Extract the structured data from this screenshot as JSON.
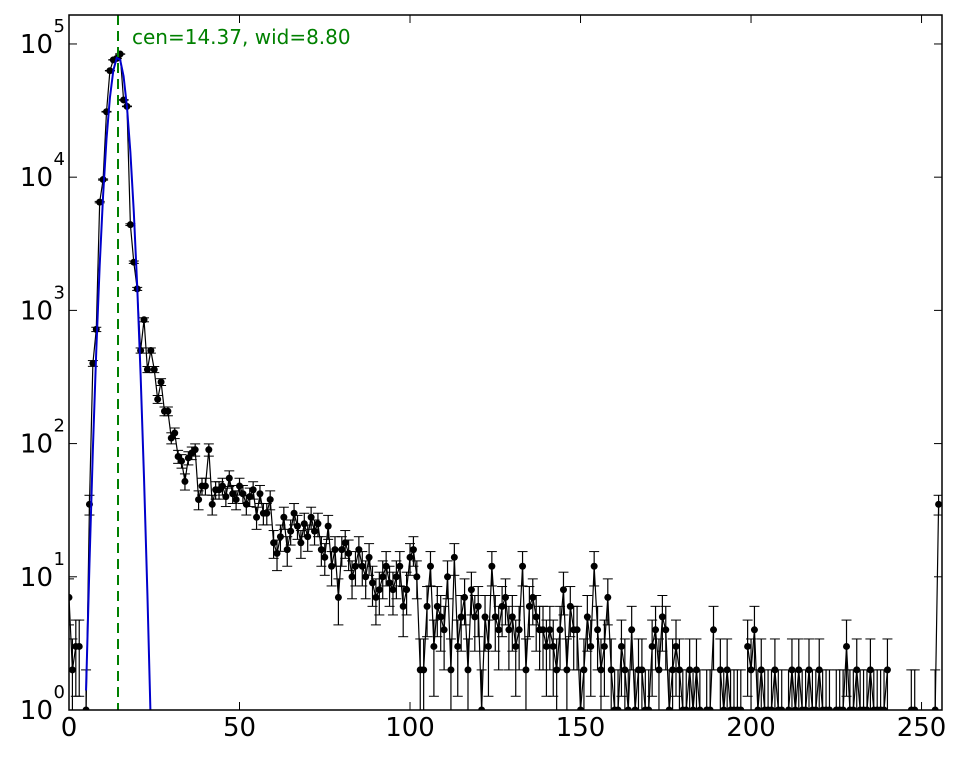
{
  "chart_data": {
    "type": "errorbar",
    "yscale": "log",
    "xlim": [
      0,
      256
    ],
    "ylim": [
      1,
      165000
    ],
    "xticks": [
      0,
      50,
      100,
      150,
      200,
      250
    ],
    "yticks": [
      {
        "value": 1,
        "label": "10",
        "exponent": "0"
      },
      {
        "value": 10,
        "label": "10",
        "exponent": "1"
      },
      {
        "value": 100,
        "label": "10",
        "exponent": "2"
      },
      {
        "value": 1000,
        "label": "10",
        "exponent": "3"
      },
      {
        "value": 10000,
        "label": "10",
        "exponent": "4"
      },
      {
        "value": 100000,
        "label": "10",
        "exponent": "5"
      }
    ],
    "annotation": "cen=14.37, wid=8.80",
    "vline": {
      "x": 14.37,
      "color": "#008000"
    },
    "series": [
      {
        "kind": "data",
        "color": "#000000",
        "x": [
          0,
          1,
          2,
          3,
          4,
          5,
          6,
          7,
          8,
          9,
          10,
          11,
          12,
          13,
          14,
          15,
          16,
          17,
          18,
          19,
          20,
          21,
          22,
          23,
          24,
          25,
          26,
          27,
          28,
          29,
          30,
          31,
          32,
          33,
          34,
          35,
          36,
          37,
          38,
          39,
          40,
          41,
          42,
          43,
          44,
          45,
          46,
          47,
          48,
          49,
          50,
          51,
          52,
          53,
          54,
          55,
          56,
          57,
          58,
          59,
          60,
          61,
          62,
          63,
          64,
          65,
          66,
          67,
          68,
          69,
          70,
          71,
          72,
          73,
          74,
          75,
          76,
          77,
          78,
          79,
          80,
          81,
          82,
          83,
          84,
          85,
          86,
          87,
          88,
          89,
          90,
          91,
          92,
          93,
          94,
          95,
          96,
          97,
          98,
          99,
          100,
          101,
          102,
          103,
          104,
          105,
          106,
          107,
          108,
          109,
          110,
          111,
          112,
          113,
          114,
          115,
          116,
          117,
          118,
          119,
          120,
          121,
          122,
          123,
          124,
          125,
          126,
          127,
          128,
          129,
          130,
          131,
          132,
          133,
          134,
          135,
          136,
          137,
          138,
          139,
          140,
          141,
          142,
          143,
          144,
          145,
          146,
          147,
          148,
          149,
          150,
          151,
          152,
          153,
          154,
          155,
          156,
          157,
          158,
          159,
          160,
          161,
          162,
          163,
          164,
          165,
          166,
          167,
          168,
          169,
          170,
          171,
          172,
          173,
          174,
          175,
          176,
          177,
          178,
          179,
          180,
          181,
          182,
          183,
          184,
          185,
          186,
          187,
          188,
          189,
          190,
          191,
          192,
          193,
          194,
          195,
          196,
          197,
          198,
          199,
          200,
          201,
          202,
          203,
          204,
          205,
          206,
          207,
          208,
          209,
          210,
          211,
          212,
          213,
          214,
          215,
          216,
          217,
          218,
          219,
          220,
          221,
          222,
          223,
          224,
          225,
          226,
          227,
          228,
          229,
          230,
          231,
          232,
          233,
          234,
          235,
          236,
          237,
          238,
          239,
          240,
          241,
          242,
          243,
          244,
          245,
          246,
          247,
          248,
          249,
          250,
          251,
          252,
          253,
          254,
          255
        ],
        "values": [
          7,
          2,
          3,
          3,
          null,
          1,
          35,
          400,
          720,
          6500,
          9600,
          31000,
          63000,
          76000,
          78000,
          84000,
          38000,
          34000,
          4400,
          2300,
          1450,
          500,
          850,
          360,
          500,
          360,
          215,
          290,
          175,
          175,
          110,
          120,
          80,
          74,
          52,
          78,
          85,
          90,
          38,
          48,
          48,
          90,
          35,
          45,
          45,
          48,
          40,
          55,
          42,
          38,
          48,
          42,
          35,
          40,
          45,
          28,
          42,
          30,
          30,
          38,
          18,
          15,
          20,
          28,
          16,
          22,
          30,
          24,
          18,
          25,
          20,
          28,
          22,
          25,
          16,
          14,
          24,
          12,
          16,
          7,
          16,
          18,
          15,
          10,
          12,
          16,
          12,
          10,
          14,
          9,
          7,
          8,
          10,
          12,
          9,
          8,
          10,
          12,
          6,
          8,
          14,
          16,
          10,
          2,
          2,
          6,
          12,
          3,
          6,
          5,
          4,
          10,
          2,
          14,
          3,
          5,
          7,
          2,
          8,
          5,
          6,
          1,
          5,
          3,
          12,
          5,
          4,
          6,
          7,
          4,
          5,
          3,
          4,
          12,
          2,
          6,
          7,
          5,
          4,
          4,
          3,
          4,
          3,
          2,
          4,
          8,
          2,
          6,
          4,
          4,
          1,
          2,
          5,
          3,
          12,
          4,
          2,
          3,
          7,
          2,
          1,
          1,
          3,
          2,
          1,
          4,
          1,
          2,
          2,
          1,
          1,
          3,
          4,
          2,
          5,
          4,
          1,
          2,
          3,
          2,
          1,
          1,
          2,
          1,
          2,
          1,
          null,
          1,
          1,
          4,
          null,
          2,
          1,
          2,
          1,
          1,
          1,
          1,
          null,
          3,
          2,
          4,
          1,
          2,
          1,
          1,
          1,
          2,
          1,
          1,
          null,
          1,
          2,
          1,
          2,
          1,
          1,
          2,
          1,
          1,
          2,
          1,
          1,
          1,
          null,
          1,
          1,
          1,
          3,
          1,
          1,
          2,
          1,
          1,
          1,
          2,
          1,
          1,
          1,
          1,
          2,
          null,
          null,
          null,
          null,
          null,
          null,
          1,
          1,
          null,
          null,
          null,
          null,
          null,
          1,
          35
        ]
      },
      {
        "kind": "fit",
        "color": "#0000cc",
        "x": [
          5,
          6,
          7,
          8,
          9,
          10,
          11,
          12,
          13,
          14,
          15,
          16,
          17,
          18,
          19,
          20,
          21,
          22,
          23,
          24
        ],
        "values": [
          1.4,
          12.5,
          90,
          500,
          2180,
          7300,
          19400,
          39600,
          63300,
          78600,
          76100,
          57300,
          33700,
          15400,
          5490,
          1520,
          327,
          55,
          7.3,
          0.74
        ]
      }
    ]
  }
}
